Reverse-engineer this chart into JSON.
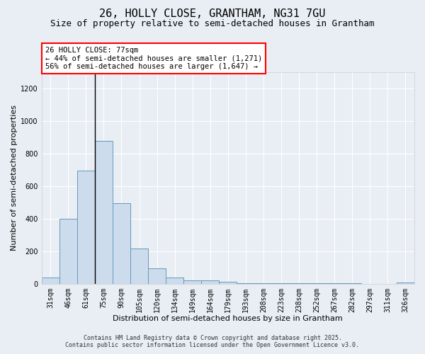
{
  "title1": "26, HOLLY CLOSE, GRANTHAM, NG31 7GU",
  "title2": "Size of property relative to semi-detached houses in Grantham",
  "xlabel": "Distribution of semi-detached houses by size in Grantham",
  "ylabel": "Number of semi-detached properties",
  "categories": [
    "31sqm",
    "46sqm",
    "61sqm",
    "75sqm",
    "90sqm",
    "105sqm",
    "120sqm",
    "134sqm",
    "149sqm",
    "164sqm",
    "179sqm",
    "193sqm",
    "208sqm",
    "223sqm",
    "238sqm",
    "252sqm",
    "267sqm",
    "282sqm",
    "297sqm",
    "311sqm",
    "326sqm"
  ],
  "values": [
    40,
    400,
    695,
    880,
    495,
    215,
    95,
    40,
    20,
    20,
    10,
    5,
    5,
    2,
    2,
    1,
    1,
    1,
    0,
    0,
    8
  ],
  "bar_color": "#ccdcec",
  "bar_edge_color": "#6699bb",
  "vline_x": 3,
  "annotation_text": "26 HOLLY CLOSE: 77sqm\n← 44% of semi-detached houses are smaller (1,271)\n56% of semi-detached houses are larger (1,647) →",
  "annotation_box_color": "white",
  "annotation_box_edge_color": "red",
  "ylim": [
    0,
    1300
  ],
  "yticks": [
    0,
    200,
    400,
    600,
    800,
    1000,
    1200
  ],
  "bg_color": "#e8eef4",
  "plot_bg_color": "#e8eef4",
  "grid_color": "#ffffff",
  "footer1": "Contains HM Land Registry data © Crown copyright and database right 2025.",
  "footer2": "Contains public sector information licensed under the Open Government Licence v3.0.",
  "title_fontsize": 11,
  "subtitle_fontsize": 9,
  "axis_label_fontsize": 8,
  "tick_fontsize": 7,
  "annotation_fontsize": 7.5,
  "footer_fontsize": 6
}
